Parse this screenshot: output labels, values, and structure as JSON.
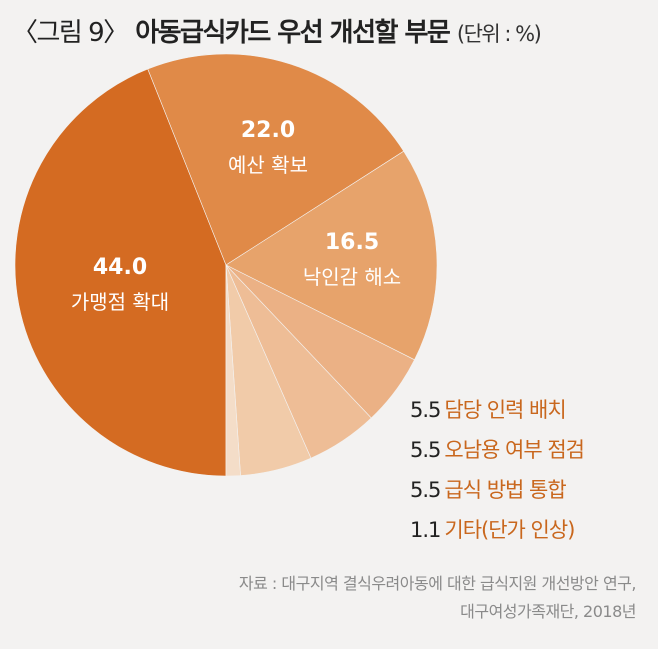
{
  "title": {
    "figure": "〈그림 9〉",
    "main": "아동급식카드 우선 개선할 부문",
    "unit": "(단위 : %)"
  },
  "chart_data": {
    "type": "pie",
    "unit": "%",
    "slices": [
      {
        "label": "가맹점 확대",
        "value": 44.0,
        "value_text": "44.0",
        "color": "#d46b22"
      },
      {
        "label": "예산 확보",
        "value": 22.0,
        "value_text": "22.0",
        "color": "#e08a48"
      },
      {
        "label": "낙인감 해소",
        "value": 16.5,
        "value_text": "16.5",
        "color": "#e7a36b"
      },
      {
        "label": "담당 인력 배치",
        "value": 5.5,
        "value_text": "5.5",
        "color": "#ebb185"
      },
      {
        "label": "오남용 여부 점검",
        "value": 5.5,
        "value_text": "5.5",
        "color": "#eebd96"
      },
      {
        "label": "급식 방법 통합",
        "value": 5.5,
        "value_text": "5.5",
        "color": "#f1cba9"
      },
      {
        "label": "기타(단가 인상)",
        "value": 1.1,
        "value_text": "1.1",
        "color": "#f4ddc8"
      }
    ]
  },
  "source": {
    "line1": "자료 : 대구지역 결식우려아동에 대한 급식지원 개선방안 연구,",
    "line2": "대구여성가족재단, 2018년"
  }
}
